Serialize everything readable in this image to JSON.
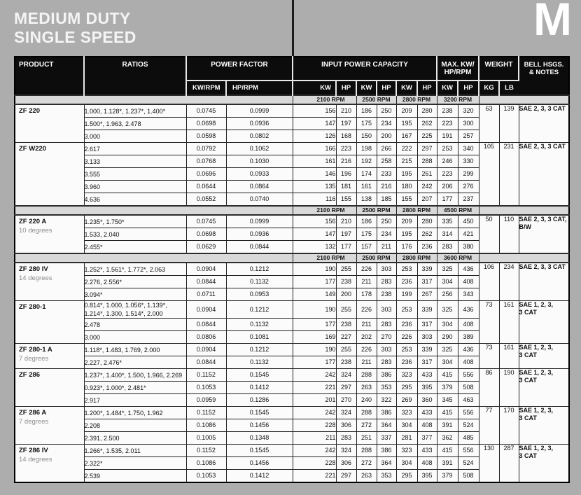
{
  "page": {
    "title_line1": "MEDIUM DUTY",
    "title_line2": "SINGLE SPEED",
    "corner_letter": "M"
  },
  "table": {
    "header": {
      "product": "PRODUCT",
      "ratios": "RATIOS",
      "power_factor": "POWER FACTOR",
      "input_power_capacity": "INPUT POWER CAPACITY",
      "max_kw_line1": "MAX. KW/",
      "max_kw_line2": "HP/RPM",
      "weight": "WEIGHT",
      "bell_line1": "BELL HSGS.",
      "bell_line2": "& NOTES",
      "units": [
        "KW/RPM",
        "HP/RPM",
        "KW",
        "HP",
        "KW",
        "HP",
        "KW",
        "HP",
        "KW",
        "HP",
        "KG",
        "LB"
      ]
    },
    "sections": [
      {
        "type": "band",
        "labels": [
          "2100 RPM",
          "2500 RPM",
          "2800 RPM",
          "3200 RPM"
        ]
      },
      {
        "type": "product",
        "name": "ZF 220",
        "subtitle": "",
        "weight_kg": "63",
        "weight_lb": "139",
        "notes": [
          "SAE 2, 3, 3 CAT"
        ],
        "rows": [
          {
            "ratios": "1.000, 1.128*, 1.237*, 1.400*",
            "kw_per_rpm": "0.0745",
            "hp_per_rpm": "0.0999",
            "capacity": [
              156,
              210,
              186,
              250,
              209,
              280
            ],
            "max": [
              238,
              320
            ]
          },
          {
            "ratios": "1.500*, 1.963, 2.478",
            "kw_per_rpm": "0.0698",
            "hp_per_rpm": "0.0936",
            "capacity": [
              147,
              197,
              175,
              234,
              195,
              262
            ],
            "max": [
              223,
              300
            ]
          },
          {
            "ratios": "3.000",
            "kw_per_rpm": "0.0598",
            "hp_per_rpm": "0.0802",
            "capacity": [
              126,
              168,
              150,
              200,
              167,
              225
            ],
            "max": [
              191,
              257
            ]
          }
        ]
      },
      {
        "type": "product",
        "name": "ZF W220",
        "subtitle": "",
        "weight_kg": "105",
        "weight_lb": "231",
        "notes": [
          "SAE 2, 3, 3 CAT"
        ],
        "rows": [
          {
            "ratios": "2.617",
            "kw_per_rpm": "0.0792",
            "hp_per_rpm": "0.1062",
            "capacity": [
              166,
              223,
              198,
              266,
              222,
              297
            ],
            "max": [
              253,
              340
            ]
          },
          {
            "ratios": "3.133",
            "kw_per_rpm": "0.0768",
            "hp_per_rpm": "0.1030",
            "capacity": [
              161,
              216,
              192,
              258,
              215,
              288
            ],
            "max": [
              246,
              330
            ]
          },
          {
            "ratios": "3.555",
            "kw_per_rpm": "0.0696",
            "hp_per_rpm": "0.0933",
            "capacity": [
              146,
              196,
              174,
              233,
              195,
              261
            ],
            "max": [
              223,
              299
            ]
          },
          {
            "ratios": "3.960",
            "kw_per_rpm": "0.0644",
            "hp_per_rpm": "0.0864",
            "capacity": [
              135,
              181,
              161,
              216,
              180,
              242
            ],
            "max": [
              206,
              276
            ]
          },
          {
            "ratios": "4.636",
            "kw_per_rpm": "0.0552",
            "hp_per_rpm": "0.0740",
            "capacity": [
              116,
              155,
              138,
              185,
              155,
              207
            ],
            "max": [
              177,
              237
            ]
          }
        ]
      },
      {
        "type": "band",
        "labels": [
          "2100 RPM",
          "2500 RPM",
          "2800 RPM",
          "4500 RPM"
        ]
      },
      {
        "type": "product",
        "name": "ZF 220 A",
        "subtitle": "10 degrees",
        "weight_kg": "50",
        "weight_lb": "110",
        "notes": [
          "SAE 2, 3, 3 CAT,",
          "B/W"
        ],
        "rows": [
          {
            "ratios": "1.235*, 1.750*",
            "kw_per_rpm": "0.0745",
            "hp_per_rpm": "0.0999",
            "capacity": [
              156,
              210,
              186,
              250,
              209,
              280
            ],
            "max": [
              335,
              450
            ]
          },
          {
            "ratios": "1.533, 2.040",
            "kw_per_rpm": "0.0698",
            "hp_per_rpm": "0.0936",
            "capacity": [
              147,
              197,
              175,
              234,
              195,
              262
            ],
            "max": [
              314,
              421
            ]
          },
          {
            "ratios": "2.455*",
            "kw_per_rpm": "0.0629",
            "hp_per_rpm": "0.0844",
            "capacity": [
              132,
              177,
              157,
              211,
              176,
              236
            ],
            "max": [
              283,
              380
            ]
          }
        ]
      },
      {
        "type": "band",
        "labels": [
          "2100 RPM",
          "2500 RPM",
          "2800 RPM",
          "3600 RPM"
        ]
      },
      {
        "type": "product",
        "name": "ZF 280 IV",
        "subtitle": "14 degrees",
        "weight_kg": "106",
        "weight_lb": "234",
        "notes": [
          "SAE 2, 3, 3 CAT"
        ],
        "rows": [
          {
            "ratios": "1.252*, 1.561*, 1.772*, 2.063",
            "kw_per_rpm": "0.0904",
            "hp_per_rpm": "0.1212",
            "capacity": [
              190,
              255,
              226,
              303,
              253,
              339
            ],
            "max": [
              325,
              436
            ]
          },
          {
            "ratios": "2.276, 2.556*",
            "kw_per_rpm": "0.0844",
            "hp_per_rpm": "0.1132",
            "capacity": [
              177,
              238,
              211,
              283,
              236,
              317
            ],
            "max": [
              304,
              408
            ]
          },
          {
            "ratios": "3.094*",
            "kw_per_rpm": "0.0711",
            "hp_per_rpm": "0.0953",
            "capacity": [
              149,
              200,
              178,
              238,
              199,
              267
            ],
            "max": [
              256,
              343
            ]
          }
        ]
      },
      {
        "type": "product",
        "name": "ZF 280-1",
        "subtitle": "",
        "weight_kg": "73",
        "weight_lb": "161",
        "notes": [
          "SAE 1, 2, 3,",
          "3 CAT"
        ],
        "rows": [
          {
            "ratios": [
              "0.814*, 1.000, 1.056*, 1.139*,",
              "1.214*, 1.300, 1.514*, 2.000"
            ],
            "kw_per_rpm": "0.0904",
            "hp_per_rpm": "0.1212",
            "capacity": [
              190,
              255,
              226,
              303,
              253,
              339
            ],
            "max": [
              325,
              436
            ]
          },
          {
            "ratios": "2.478",
            "kw_per_rpm": "0.0844",
            "hp_per_rpm": "0.1132",
            "capacity": [
              177,
              238,
              211,
              283,
              236,
              317
            ],
            "max": [
              304,
              408
            ]
          },
          {
            "ratios": "3.000",
            "kw_per_rpm": "0.0806",
            "hp_per_rpm": "0.1081",
            "capacity": [
              169,
              227,
              202,
              270,
              226,
              303
            ],
            "max": [
              290,
              389
            ]
          }
        ]
      },
      {
        "type": "product",
        "name": "ZF 280-1 A",
        "subtitle": "7 degrees",
        "weight_kg": "73",
        "weight_lb": "161",
        "notes": [
          "SAE 1, 2, 3,",
          "3 CAT"
        ],
        "rows": [
          {
            "ratios": "1.118*, 1.483, 1.769, 2.000",
            "kw_per_rpm": "0.0904",
            "hp_per_rpm": "0.1212",
            "capacity": [
              190,
              255,
              226,
              303,
              253,
              339
            ],
            "max": [
              325,
              436
            ]
          },
          {
            "ratios": "2.227, 2.476*",
            "kw_per_rpm": "0.0844",
            "hp_per_rpm": "0.1132",
            "capacity": [
              177,
              238,
              211,
              283,
              236,
              317
            ],
            "max": [
              304,
              408
            ]
          }
        ]
      },
      {
        "type": "product",
        "name": "ZF 286",
        "subtitle": "",
        "weight_kg": "86",
        "weight_lb": "190",
        "notes": [
          "SAE 1, 2, 3,",
          "3 CAT"
        ],
        "rows": [
          {
            "ratios": "1.237*, 1.400*, 1.500, 1.966, 2.269",
            "kw_per_rpm": "0.1152",
            "hp_per_rpm": "0.1545",
            "capacity": [
              242,
              324,
              288,
              386,
              323,
              433
            ],
            "max": [
              415,
              556
            ]
          },
          {
            "ratios": "0.923*, 1.000*, 2.481*",
            "kw_per_rpm": "0.1053",
            "hp_per_rpm": "0.1412",
            "capacity": [
              221,
              297,
              263,
              353,
              295,
              395
            ],
            "max": [
              379,
              508
            ]
          },
          {
            "ratios": "2.917",
            "kw_per_rpm": "0.0959",
            "hp_per_rpm": "0.1286",
            "capacity": [
              201,
              270,
              240,
              322,
              269,
              360
            ],
            "max": [
              345,
              463
            ]
          }
        ]
      },
      {
        "type": "product",
        "name": "ZF 286 A",
        "subtitle": "7 degrees",
        "weight_kg": "77",
        "weight_lb": "170",
        "notes": [
          "SAE 1, 2, 3,",
          "3 CAT"
        ],
        "rows": [
          {
            "ratios": "1.200*, 1.484*, 1.750, 1.962",
            "kw_per_rpm": "0.1152",
            "hp_per_rpm": "0.1545",
            "capacity": [
              242,
              324,
              288,
              386,
              323,
              433
            ],
            "max": [
              415,
              556
            ]
          },
          {
            "ratios": "2.208",
            "kw_per_rpm": "0.1086",
            "hp_per_rpm": "0.1456",
            "capacity": [
              228,
              306,
              272,
              364,
              304,
              408
            ],
            "max": [
              391,
              524
            ]
          },
          {
            "ratios": "2.391, 2.500",
            "kw_per_rpm": "0.1005",
            "hp_per_rpm": "0.1348",
            "capacity": [
              211,
              283,
              251,
              337,
              281,
              377
            ],
            "max": [
              362,
              485
            ]
          }
        ]
      },
      {
        "type": "product",
        "name": "ZF 286 IV",
        "subtitle": "14 degrees",
        "weight_kg": "130",
        "weight_lb": "287",
        "notes": [
          "SAE 1, 2, 3,",
          "3 CAT"
        ],
        "rows": [
          {
            "ratios": "1.266*, 1.535, 2.011",
            "kw_per_rpm": "0.1152",
            "hp_per_rpm": "0.1545",
            "capacity": [
              242,
              324,
              288,
              386,
              323,
              433
            ],
            "max": [
              415,
              556
            ]
          },
          {
            "ratios": "2.322*",
            "kw_per_rpm": "0.1086",
            "hp_per_rpm": "0.1456",
            "capacity": [
              228,
              306,
              272,
              364,
              304,
              408
            ],
            "max": [
              391,
              524
            ]
          },
          {
            "ratios": "2.539",
            "kw_per_rpm": "0.1053",
            "hp_per_rpm": "0.1412",
            "capacity": [
              221,
              297,
              263,
              353,
              295,
              395
            ],
            "max": [
              379,
              508
            ]
          }
        ]
      }
    ]
  }
}
